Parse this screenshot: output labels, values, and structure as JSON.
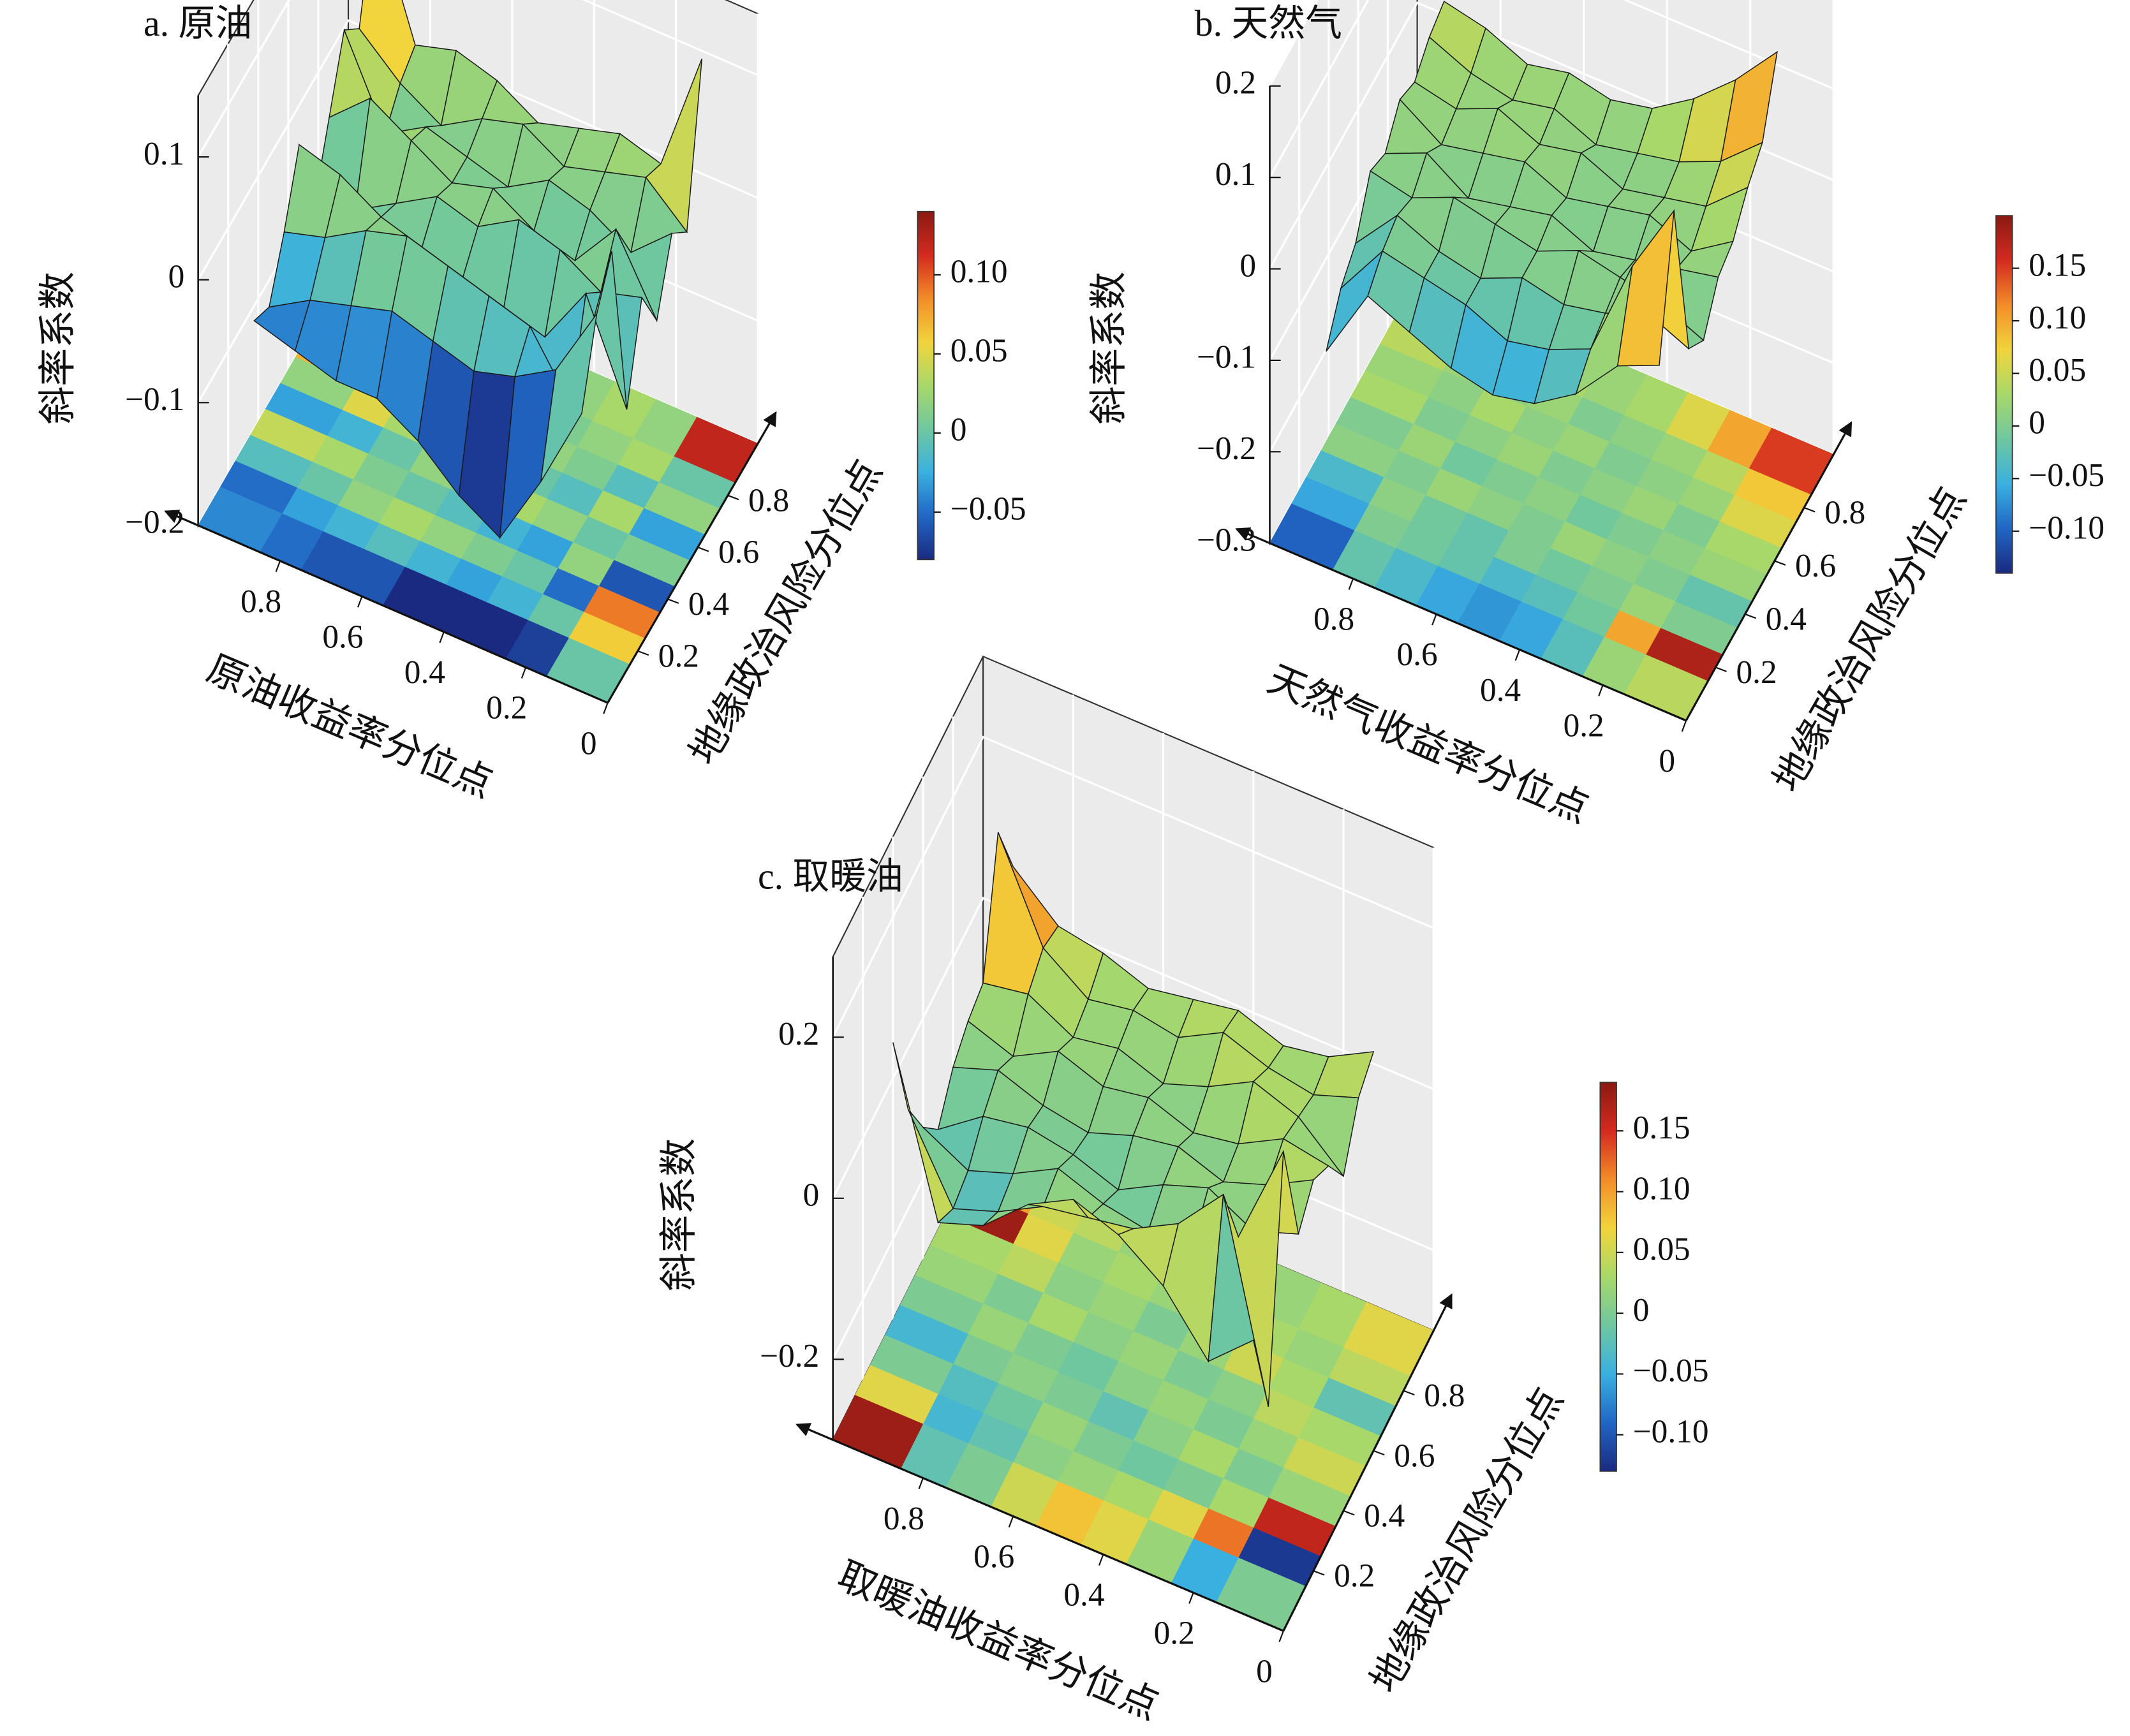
{
  "chart_data": [
    {
      "type": "surface3d",
      "title": "a. 原油",
      "zlabel": "斜率系数",
      "xlabel": "原油收益率分位点",
      "ylabel": "地缘政治风险分位点",
      "xticks": [
        0,
        0.2,
        0.4,
        0.6,
        0.8
      ],
      "yticks": [
        0.2,
        0.4,
        0.6,
        0.8
      ],
      "zlim": [
        -0.2,
        0.15
      ],
      "zticks": [
        {
          "value": -0.2,
          "label": "−0.2"
        },
        {
          "value": -0.1,
          "label": "−0.1"
        },
        0,
        0.1
      ],
      "clim": [
        -0.08,
        0.14
      ],
      "cticks": [
        {
          "value": -0.05,
          "label": "−0.05"
        },
        0,
        0.05,
        {
          "value": 0.1,
          "label": "0.10"
        }
      ],
      "colormap": [
        "#1a2a80",
        "#2166c4",
        "#3ab0e0",
        "#6fc7a0",
        "#a8d86a",
        "#f2d43c",
        "#f28c28",
        "#d42a20",
        "#8a1a12"
      ],
      "x": [
        0.1,
        0.2,
        0.3,
        0.4,
        0.5,
        0.6,
        0.7,
        0.8,
        0.9
      ],
      "y": [
        0.1,
        0.2,
        0.3,
        0.4,
        0.5,
        0.6,
        0.7,
        0.8,
        0.9
      ],
      "z": [
        [
          0.0,
          -0.07,
          -0.13,
          -0.11,
          -0.08,
          -0.06,
          -0.06,
          -0.05,
          -0.04
        ],
        [
          0.06,
          0.0,
          -0.02,
          -0.03,
          -0.02,
          -0.01,
          -0.02,
          -0.03,
          -0.05
        ],
        [
          0.09,
          -0.05,
          0.0,
          0.01,
          0.02,
          0.03,
          0.02,
          0.0,
          -0.01
        ],
        [
          -0.06,
          0.02,
          -0.03,
          -0.02,
          -0.01,
          0.0,
          0.01,
          0.03,
          0.04
        ],
        [
          0.01,
          0.0,
          0.02,
          0.03,
          0.01,
          0.02,
          0.0,
          -0.02,
          -0.03
        ],
        [
          -0.03,
          0.03,
          -0.01,
          0.0,
          0.02,
          0.01,
          0.03,
          0.05,
          0.02
        ],
        [
          0.02,
          -0.01,
          0.01,
          0.02,
          0.0,
          0.01,
          0.02,
          0.0,
          0.07
        ],
        [
          0.0,
          0.03,
          0.02,
          0.01,
          0.03,
          0.02,
          0.0,
          0.02,
          0.05
        ],
        [
          0.12,
          0.02,
          0.03,
          0.02,
          0.01,
          0.03,
          0.04,
          0.03,
          0.13
        ]
      ]
    },
    {
      "type": "surface3d",
      "title": "b. 天然气",
      "zlabel": "斜率系数",
      "xlabel": "天然气收益率分位点",
      "ylabel": "地缘政治风险分位点",
      "xticks": [
        0,
        0.2,
        0.4,
        0.6,
        0.8
      ],
      "yticks": [
        0.2,
        0.4,
        0.6,
        0.8
      ],
      "zlim": [
        -0.3,
        0.2
      ],
      "zticks": [
        {
          "value": -0.3,
          "label": "−0.3"
        },
        {
          "value": -0.2,
          "label": "−0.2"
        },
        {
          "value": -0.1,
          "label": "−0.1"
        },
        0,
        0.1,
        0.2
      ],
      "clim": [
        -0.14,
        0.2
      ],
      "cticks": [
        {
          "value": -0.1,
          "label": "−0.10"
        },
        {
          "value": -0.05,
          "label": "−0.05"
        },
        0,
        0.05,
        {
          "value": 0.1,
          "label": "0.10"
        },
        0.15
      ],
      "colormap": [
        "#1a2a80",
        "#2166c4",
        "#3ab0e0",
        "#6fc7a0",
        "#a8d86a",
        "#f2d43c",
        "#f28c28",
        "#d42a20",
        "#8a1a12"
      ],
      "x": [
        0.1,
        0.2,
        0.3,
        0.4,
        0.5,
        0.6,
        0.7,
        0.8,
        0.9
      ],
      "y": [
        0.1,
        0.2,
        0.3,
        0.4,
        0.5,
        0.6,
        0.7,
        0.8,
        0.9
      ],
      "z": [
        [
          0.04,
          0.02,
          -0.03,
          -0.06,
          -0.07,
          -0.06,
          -0.04,
          -0.02,
          -0.1
        ],
        [
          0.18,
          0.1,
          -0.01,
          -0.03,
          -0.04,
          -0.02,
          -0.01,
          0.0,
          -0.06
        ],
        [
          0.0,
          0.02,
          0.0,
          -0.01,
          0.0,
          -0.02,
          -0.01,
          0.01,
          -0.04
        ],
        [
          -0.02,
          0.0,
          0.01,
          0.02,
          0.0,
          0.01,
          0.02,
          0.0,
          0.01
        ],
        [
          0.02,
          0.01,
          0.0,
          -0.01,
          0.01,
          0.0,
          -0.01,
          0.02,
          0.0
        ],
        [
          0.03,
          0.0,
          0.02,
          0.01,
          0.0,
          0.02,
          0.01,
          0.0,
          0.03
        ],
        [
          0.06,
          0.02,
          0.01,
          0.0,
          0.02,
          0.01,
          0.03,
          0.01,
          0.02
        ],
        [
          0.08,
          0.04,
          0.02,
          0.01,
          0.0,
          0.02,
          0.01,
          0.02,
          0.04
        ],
        [
          0.15,
          0.1,
          0.06,
          0.03,
          0.02,
          0.03,
          0.02,
          0.04,
          0.05
        ]
      ]
    },
    {
      "type": "surface3d",
      "title": "c. 取暖油",
      "zlabel": "斜率系数",
      "xlabel": "取暖油收益率分位点",
      "ylabel": "地缘政治风险分位点",
      "xticks": [
        0,
        0.2,
        0.4,
        0.6,
        0.8
      ],
      "yticks": [
        0.2,
        0.4,
        0.6,
        0.8
      ],
      "zlim": [
        -0.3,
        0.3
      ],
      "zticks": [
        {
          "value": -0.2,
          "label": "−0.2"
        },
        0,
        0.2
      ],
      "clim": [
        -0.13,
        0.19
      ],
      "cticks": [
        {
          "value": -0.1,
          "label": "−0.10"
        },
        {
          "value": -0.05,
          "label": "−0.05"
        },
        0,
        0.05,
        {
          "value": 0.1,
          "label": "0.10"
        },
        0.15
      ],
      "colormap": [
        "#1a2a80",
        "#2166c4",
        "#3ab0e0",
        "#6fc7a0",
        "#a8d86a",
        "#f2d43c",
        "#f28c28",
        "#d42a20",
        "#8a1a12"
      ],
      "x": [
        0.1,
        0.2,
        0.3,
        0.4,
        0.5,
        0.6,
        0.7,
        0.8,
        0.9
      ],
      "y": [
        0.1,
        0.2,
        0.3,
        0.4,
        0.5,
        0.6,
        0.7,
        0.8,
        0.9
      ],
      "z": [
        [
          0.0,
          -0.05,
          0.02,
          0.06,
          0.08,
          0.05,
          0.0,
          -0.02,
          0.18
        ],
        [
          -0.12,
          0.12,
          0.06,
          0.03,
          0.02,
          0.01,
          -0.02,
          -0.04,
          0.06
        ],
        [
          0.16,
          0.03,
          0.0,
          -0.01,
          0.0,
          0.02,
          -0.01,
          -0.03,
          0.0
        ],
        [
          0.02,
          0.0,
          0.03,
          0.01,
          -0.02,
          0.0,
          0.01,
          0.0,
          -0.04
        ],
        [
          0.05,
          0.02,
          0.0,
          0.02,
          0.01,
          -0.01,
          0.0,
          0.02,
          0.0
        ],
        [
          0.03,
          0.04,
          0.01,
          0.0,
          0.02,
          0.01,
          0.03,
          0.0,
          0.02
        ],
        [
          -0.02,
          0.03,
          0.05,
          0.02,
          0.0,
          0.02,
          0.01,
          0.04,
          0.03
        ],
        [
          0.04,
          0.02,
          0.03,
          0.05,
          0.02,
          0.03,
          0.02,
          0.06,
          0.18
        ],
        [
          0.06,
          0.03,
          0.02,
          0.04,
          0.03,
          0.02,
          0.04,
          0.05,
          0.1
        ]
      ]
    }
  ]
}
